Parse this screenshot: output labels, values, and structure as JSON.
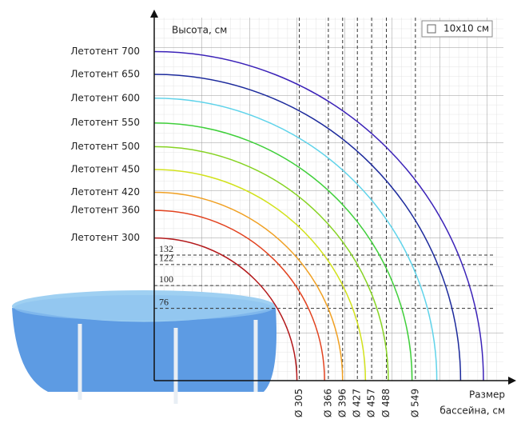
{
  "chart_data": {
    "type": "arcs",
    "y_label": "Высота, см",
    "x_label": [
      "Размер",
      "бассейна, см"
    ],
    "grid_legend": "10x10 см",
    "xlim": [
      0,
      734
    ],
    "ylim": [
      0,
      375
    ],
    "xticks": [
      {
        "value": 305,
        "label": "Ø 305"
      },
      {
        "value": 366,
        "label": "Ø 366"
      },
      {
        "value": 396,
        "label": "Ø 396"
      },
      {
        "value": 427,
        "label": "Ø 427"
      },
      {
        "value": 457,
        "label": "Ø 457"
      },
      {
        "value": 488,
        "label": "Ø 488"
      },
      {
        "value": 549,
        "label": "Ø 549"
      }
    ],
    "yticks": [
      76,
      100,
      122,
      132
    ],
    "series": [
      {
        "name": "Летотент 700",
        "color": "#3b22b8",
        "value": 346
      },
      {
        "name": "Летотент 650",
        "color": "#1c2a9c",
        "value": 322
      },
      {
        "name": "Летотент 600",
        "color": "#5fd3ea",
        "value": 297
      },
      {
        "name": "Летотент 550",
        "color": "#3fcf3a",
        "value": 271
      },
      {
        "name": "Летотент 500",
        "color": "#86d322",
        "value": 246
      },
      {
        "name": "Летотент 450",
        "color": "#d2e21c",
        "value": 222
      },
      {
        "name": "Летотент 420",
        "color": "#f0a023",
        "value": 198
      },
      {
        "name": "Летотент 360",
        "color": "#e2421f",
        "value": 179
      },
      {
        "name": "Летотент 300",
        "color": "#b3191b",
        "value": 150
      }
    ]
  }
}
